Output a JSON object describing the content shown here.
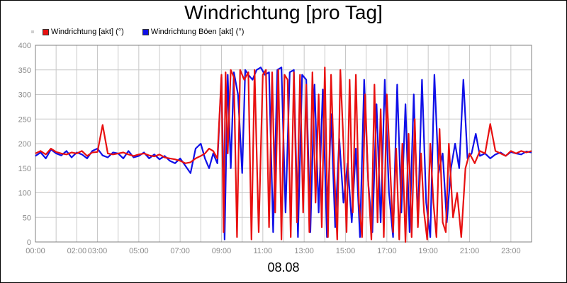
{
  "chart_data": {
    "type": "line",
    "title": "Windrichtung [pro Tag]",
    "date_label": "08.08",
    "xlabel": "",
    "ylabel": "",
    "xlim": [
      0,
      24
    ],
    "ylim": [
      0,
      400
    ],
    "grid": true,
    "legend_position": "top-left",
    "x_ticks": [
      {
        "value": 0,
        "label": "00:00"
      },
      {
        "value": 2,
        "label": "02:00"
      },
      {
        "value": 3,
        "label": "03:00"
      },
      {
        "value": 5,
        "label": "05:00"
      },
      {
        "value": 7,
        "label": "07:00"
      },
      {
        "value": 9,
        "label": "09:00"
      },
      {
        "value": 11,
        "label": "11:00"
      },
      {
        "value": 13,
        "label": "13:00"
      },
      {
        "value": 15,
        "label": "15:00"
      },
      {
        "value": 17,
        "label": "17:00"
      },
      {
        "value": 19,
        "label": "19:00"
      },
      {
        "value": 21,
        "label": "21:00"
      },
      {
        "value": 23,
        "label": "23:00"
      }
    ],
    "y_ticks": [
      0,
      50,
      100,
      150,
      200,
      250,
      300,
      350,
      400
    ],
    "series": [
      {
        "name": "Windrichtung [akt] (°)",
        "color": "#e81010",
        "x": [
          0,
          0.25,
          0.5,
          0.75,
          1,
          1.25,
          1.5,
          1.75,
          2,
          2.25,
          2.5,
          2.75,
          3,
          3.25,
          3.5,
          3.75,
          4,
          4.25,
          4.5,
          4.75,
          5,
          5.25,
          5.5,
          5.75,
          6,
          6.25,
          6.5,
          6.75,
          7,
          7.25,
          7.5,
          7.75,
          8,
          8.2,
          8.4,
          8.6,
          8.8,
          9,
          9.1,
          9.2,
          9.3,
          9.45,
          9.6,
          9.75,
          9.9,
          10.1,
          10.3,
          10.45,
          10.6,
          10.8,
          11,
          11.15,
          11.3,
          11.45,
          11.6,
          11.75,
          11.9,
          12.05,
          12.2,
          12.35,
          12.5,
          12.65,
          12.8,
          12.95,
          13.1,
          13.25,
          13.4,
          13.55,
          13.7,
          13.85,
          14,
          14.15,
          14.3,
          14.45,
          14.6,
          14.75,
          14.9,
          15.05,
          15.2,
          15.35,
          15.5,
          15.65,
          15.8,
          15.95,
          16.1,
          16.25,
          16.4,
          16.55,
          16.7,
          16.85,
          17,
          17.15,
          17.3,
          17.45,
          17.6,
          17.75,
          17.9,
          18.05,
          18.2,
          18.35,
          18.5,
          18.65,
          18.8,
          18.95,
          19.1,
          19.25,
          19.4,
          19.55,
          19.7,
          19.85,
          20,
          20.2,
          20.4,
          20.6,
          20.8,
          21,
          21.25,
          21.5,
          21.75,
          22,
          22.25,
          22.5,
          22.75,
          23,
          23.25,
          23.5,
          23.75,
          24
        ],
        "y": [
          180,
          185,
          178,
          190,
          183,
          180,
          178,
          182,
          180,
          185,
          175,
          182,
          183,
          238,
          180,
          178,
          180,
          182,
          178,
          175,
          178,
          180,
          176,
          174,
          178,
          172,
          170,
          168,
          165,
          160,
          162,
          170,
          175,
          180,
          190,
          185,
          170,
          340,
          20,
          345,
          180,
          350,
          335,
          10,
          350,
          330,
          345,
          5,
          350,
          20,
          340,
          350,
          30,
          345,
          60,
          350,
          5,
          340,
          330,
          10,
          345,
          40,
          340,
          60,
          320,
          20,
          345,
          80,
          300,
          30,
          355,
          10,
          340,
          150,
          5,
          350,
          200,
          20,
          330,
          60,
          340,
          80,
          10,
          300,
          120,
          5,
          320,
          40,
          270,
          10,
          300,
          160,
          20,
          190,
          5,
          200,
          0,
          220,
          10,
          250,
          30,
          180,
          60,
          5,
          200,
          80,
          10,
          230,
          40,
          20,
          200,
          50,
          100,
          10,
          150,
          180,
          160,
          185,
          180,
          240,
          185,
          180,
          175,
          185,
          180,
          185,
          182,
          185
        ]
      },
      {
        "name": "Windrichtung Böen [akt] (°)",
        "color": "#1010e8",
        "x": [
          0,
          0.25,
          0.5,
          0.75,
          1,
          1.25,
          1.5,
          1.75,
          2,
          2.25,
          2.5,
          2.75,
          3,
          3.25,
          3.5,
          3.75,
          4,
          4.25,
          4.5,
          4.75,
          5,
          5.25,
          5.5,
          5.75,
          6,
          6.25,
          6.5,
          6.75,
          7,
          7.25,
          7.5,
          7.75,
          8,
          8.2,
          8.4,
          8.6,
          8.8,
          9,
          9.15,
          9.3,
          9.45,
          9.6,
          9.8,
          10,
          10.15,
          10.3,
          10.5,
          10.7,
          10.9,
          11.1,
          11.3,
          11.5,
          11.7,
          11.9,
          12.1,
          12.3,
          12.5,
          12.7,
          12.9,
          13.1,
          13.3,
          13.5,
          13.7,
          13.9,
          14.1,
          14.3,
          14.5,
          14.7,
          14.9,
          15.1,
          15.3,
          15.5,
          15.7,
          15.9,
          16.1,
          16.3,
          16.5,
          16.7,
          16.9,
          17.1,
          17.3,
          17.5,
          17.7,
          17.9,
          18.1,
          18.3,
          18.5,
          18.7,
          18.9,
          19.1,
          19.3,
          19.5,
          19.7,
          19.9,
          20.1,
          20.3,
          20.5,
          20.7,
          20.9,
          21.1,
          21.3,
          21.5,
          21.75,
          22,
          22.25,
          22.5,
          22.75,
          23,
          23.25,
          23.5,
          23.75,
          24
        ],
        "y": [
          175,
          182,
          170,
          188,
          180,
          176,
          185,
          172,
          182,
          178,
          170,
          185,
          190,
          176,
          172,
          182,
          180,
          170,
          185,
          172,
          175,
          182,
          170,
          178,
          168,
          175,
          165,
          160,
          170,
          155,
          140,
          190,
          200,
          170,
          150,
          180,
          160,
          335,
          5,
          340,
          150,
          345,
          300,
          140,
          350,
          340,
          330,
          350,
          355,
          340,
          345,
          20,
          350,
          355,
          60,
          345,
          350,
          10,
          340,
          330,
          20,
          320,
          60,
          310,
          10,
          260,
          30,
          210,
          80,
          160,
          40,
          190,
          10,
          330,
          120,
          20,
          280,
          40,
          330,
          100,
          10,
          320,
          60,
          280,
          20,
          300,
          40,
          330,
          80,
          10,
          340,
          140,
          180,
          40,
          150,
          200,
          150,
          330,
          170,
          180,
          220,
          175,
          180,
          170,
          178,
          182,
          175,
          183,
          180,
          178,
          184,
          182
        ]
      }
    ]
  }
}
